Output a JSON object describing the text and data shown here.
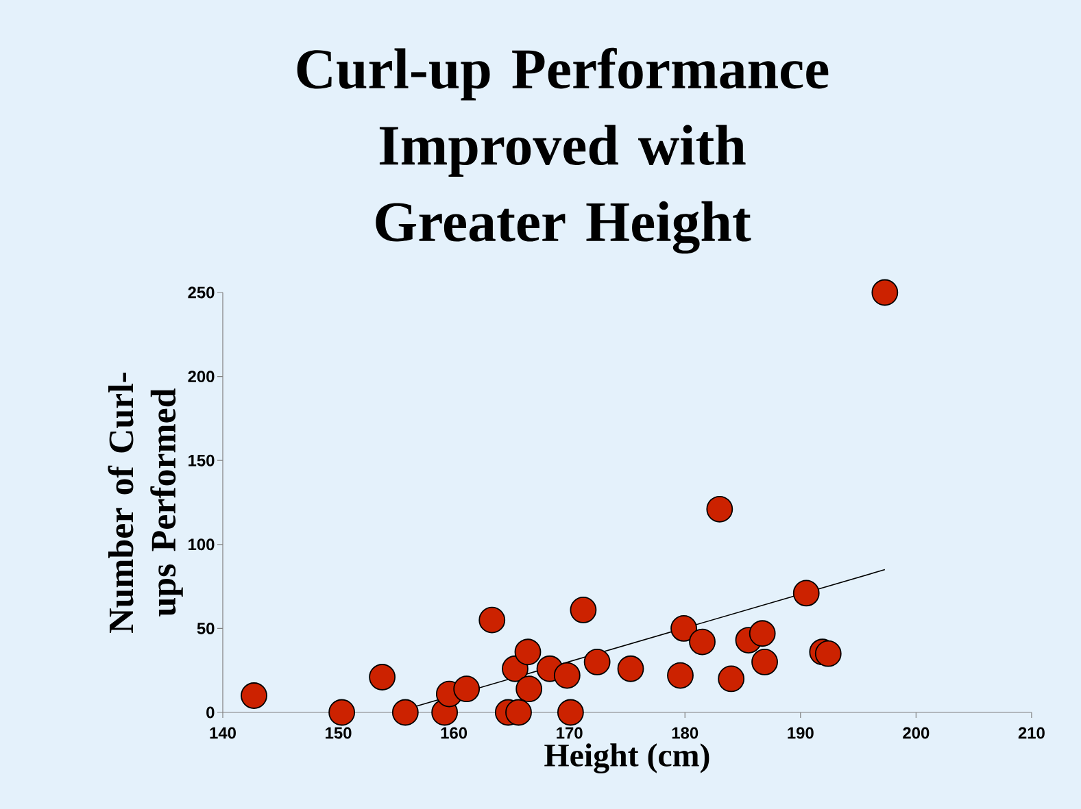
{
  "chart_data": {
    "type": "scatter",
    "title": "Curl-up Performance Improved with Greater Height",
    "xlabel": "Height (cm)",
    "ylabel": "Number of Curl-ups Performed",
    "xlim": [
      140,
      210
    ],
    "ylim": [
      0,
      250
    ],
    "xticks": [
      140,
      150,
      160,
      170,
      180,
      190,
      200,
      210
    ],
    "yticks": [
      0,
      50,
      100,
      150,
      200,
      250
    ],
    "series": [
      {
        "type": "line",
        "color": "#000000",
        "marker": "none",
        "x": [
          154.9,
          197.3
        ],
        "values": [
          0,
          85
        ]
      },
      {
        "color": "#cc2200",
        "marker": "circle",
        "x": [
          142.7,
          150.3,
          153.8,
          155.8,
          159.2,
          159.6,
          161.1,
          163.3,
          164.7,
          165.3,
          165.6,
          166.4,
          166.5,
          168.3,
          169.8,
          170.1,
          171.2,
          172.4,
          175.3,
          179.6,
          179.9,
          181.5,
          183.0,
          184.0,
          185.5,
          186.7,
          186.9,
          190.5,
          191.9,
          192.4,
          197.3
        ],
        "values": [
          10,
          0,
          21,
          0,
          0,
          11,
          14,
          55,
          0,
          26,
          0,
          36,
          14,
          26,
          22,
          0,
          61,
          30,
          26,
          22,
          50,
          42,
          121,
          20,
          43,
          47,
          30,
          71,
          36,
          35,
          250
        ]
      }
    ]
  }
}
